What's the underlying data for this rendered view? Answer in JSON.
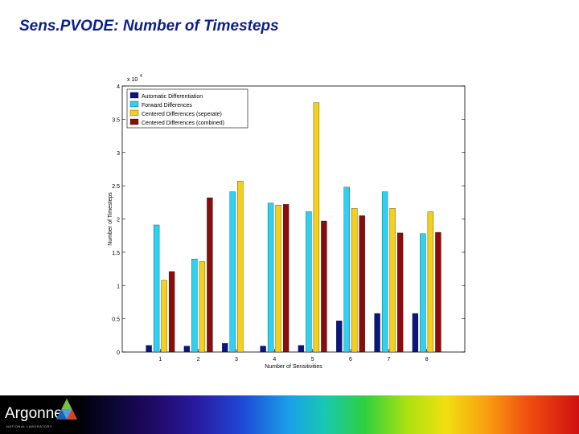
{
  "slide": {
    "title": "Sens.PVODE: Number of Timesteps"
  },
  "footer": {
    "logo_text": "Argonne",
    "logo_subtext": "NATIONAL LABORATORY"
  },
  "chart_data": {
    "type": "bar",
    "title": "",
    "xlabel": "Number of Sensitivities",
    "ylabel": "Number of Timesteps",
    "yscale_label": "x 10",
    "yscale_exponent": "4",
    "categories": [
      "1",
      "2",
      "3",
      "4",
      "5",
      "6",
      "7",
      "8"
    ],
    "ylim": [
      0,
      4
    ],
    "yticks": [
      "0",
      "0.5",
      "1",
      "1.5",
      "2",
      "2.5",
      "3",
      "3.5",
      "4"
    ],
    "legend_position": "top-left",
    "series": [
      {
        "name": "Automatic Differentiation",
        "color": "#0a1484",
        "values": [
          0.1,
          0.09,
          0.13,
          0.09,
          0.1,
          0.47,
          0.58,
          0.58
        ]
      },
      {
        "name": "Forward Differences",
        "color": "#30d0f0",
        "values": [
          1.91,
          1.4,
          2.41,
          2.24,
          2.11,
          2.48,
          2.41,
          1.78
        ]
      },
      {
        "name": "Centered Differences (seperate)",
        "color": "#f2d020",
        "values": [
          1.08,
          1.36,
          2.57,
          2.21,
          3.75,
          2.16,
          2.16,
          2.11
        ]
      },
      {
        "name": "Centered Differences (combined)",
        "color": "#8a0c0c",
        "values": [
          1.21,
          2.32,
          null,
          2.22,
          1.97,
          2.05,
          1.79,
          1.8
        ]
      }
    ]
  }
}
